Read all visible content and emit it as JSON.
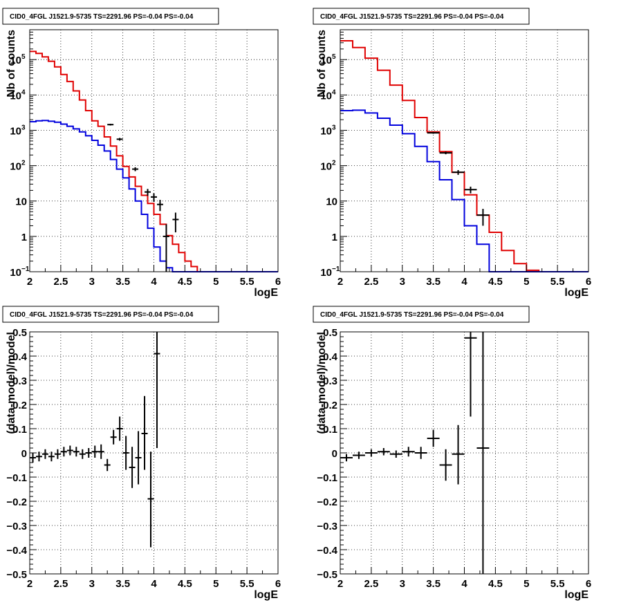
{
  "chart_data": [
    {
      "type": "line",
      "title": "CID0_4FGL J1521.9-5735 TS=2291.96 PS=-0.04 PS=-0.04",
      "xlabel": "logE",
      "ylabel": "Nb of counts",
      "xlim": [
        2,
        6
      ],
      "ylim": [
        0.1,
        700000
      ],
      "ylog": true,
      "grid": true,
      "x_ticks": [
        "2",
        "2.5",
        "3",
        "3.5",
        "4",
        "4.5",
        "5",
        "5.5",
        "6"
      ],
      "y_ticks": [
        {
          "value": 0.1,
          "label": "10",
          "sup": "−1"
        },
        {
          "value": 1,
          "label": "1",
          "sup": ""
        },
        {
          "value": 10,
          "label": "10",
          "sup": ""
        },
        {
          "value": 100,
          "label": "10",
          "sup": "2"
        },
        {
          "value": 1000,
          "label": "10",
          "sup": "3"
        },
        {
          "value": 10000,
          "label": "10",
          "sup": "4"
        },
        {
          "value": 100000,
          "label": "10",
          "sup": "5"
        }
      ],
      "bin_edges": [
        2.0,
        2.1,
        2.2,
        2.3,
        2.4,
        2.5,
        2.6,
        2.7,
        2.8,
        2.9,
        3.0,
        3.1,
        3.2,
        3.3,
        3.4,
        3.5,
        3.6,
        3.7,
        3.8,
        3.9,
        4.0,
        4.1,
        4.2,
        4.3,
        4.4,
        4.5,
        4.6,
        4.7,
        4.8,
        4.9,
        5.0,
        6.0
      ],
      "series": [
        {
          "color": "#e00000",
          "values": [
            170000,
            150000,
            120000,
            90000,
            62000,
            38000,
            24000,
            13000,
            7200,
            3600,
            1850,
            1300,
            650,
            360,
            190,
            95,
            48,
            26,
            14.5,
            8.5,
            4.2,
            2.2,
            1.05,
            0.6,
            0.35,
            0.2,
            0.14,
            0.1,
            0.1,
            0.1,
            0.1
          ]
        },
        {
          "color": "#0000dd",
          "values": [
            1750,
            1850,
            1900,
            1800,
            1700,
            1500,
            1300,
            1100,
            900,
            700,
            520,
            380,
            260,
            150,
            80,
            45,
            22,
            10,
            4.2,
            1.7,
            0.5,
            0.2,
            0.13,
            0.1,
            0.1,
            0.1,
            0.1,
            0.1,
            0.1,
            0.1,
            0.1
          ]
        }
      ],
      "points": [
        {
          "x": 3.3,
          "y": 1450,
          "xerr": 0.05,
          "ylo": 1370,
          "yhi": 1530
        },
        {
          "x": 3.45,
          "y": 560,
          "xerr": 0.05,
          "ylo": 510,
          "yhi": 610
        },
        {
          "x": 3.7,
          "y": 80,
          "xerr": 0.05,
          "ylo": 70,
          "yhi": 90
        },
        {
          "x": 3.9,
          "y": 18,
          "xerr": 0.05,
          "ylo": 14,
          "yhi": 22
        },
        {
          "x": 4.0,
          "y": 13,
          "xerr": 0.05,
          "ylo": 9.5,
          "yhi": 16.5
        },
        {
          "x": 4.1,
          "y": 8,
          "xerr": 0.05,
          "ylo": 5.2,
          "yhi": 10.8
        },
        {
          "x": 4.2,
          "y": 1,
          "xerr": 0.05,
          "ylo": 0.08,
          "yhi": 2.2
        },
        {
          "x": 4.35,
          "y": 3,
          "xerr": 0.05,
          "ylo": 1.3,
          "yhi": 4.7
        }
      ]
    },
    {
      "type": "line",
      "title": "CID0_4FGL J1521.9-5735 TS=2291.96 PS=-0.04 PS=-0.04",
      "xlabel": "logE",
      "ylabel": "Nb of counts",
      "xlim": [
        2,
        6
      ],
      "ylim": [
        0.1,
        700000
      ],
      "ylog": true,
      "grid": true,
      "x_ticks": [
        "2",
        "2.5",
        "3",
        "3.5",
        "4",
        "4.5",
        "5",
        "5.5",
        "6"
      ],
      "y_ticks": [
        {
          "value": 0.1,
          "label": "10",
          "sup": "−1"
        },
        {
          "value": 1,
          "label": "1",
          "sup": ""
        },
        {
          "value": 10,
          "label": "10",
          "sup": ""
        },
        {
          "value": 100,
          "label": "10",
          "sup": "2"
        },
        {
          "value": 1000,
          "label": "10",
          "sup": "3"
        },
        {
          "value": 10000,
          "label": "10",
          "sup": "4"
        },
        {
          "value": 100000,
          "label": "10",
          "sup": "5"
        }
      ],
      "bin_edges": [
        2.0,
        2.2,
        2.4,
        2.6,
        2.8,
        3.0,
        3.2,
        3.4,
        3.6,
        3.8,
        4.0,
        4.2,
        4.4,
        4.6,
        4.8,
        5.0,
        5.2,
        6.0
      ],
      "series": [
        {
          "color": "#e00000",
          "values": [
            340000,
            220000,
            110000,
            50000,
            19000,
            7000,
            2300,
            900,
            250,
            65,
            15,
            4,
            1.3,
            0.4,
            0.17,
            0.11,
            0.1
          ]
        },
        {
          "color": "#0000dd",
          "values": [
            3600,
            3700,
            3100,
            2200,
            1400,
            800,
            350,
            130,
            40,
            11,
            2,
            0.6,
            0.1,
            0.1,
            0.1,
            0.1,
            0.1
          ]
        }
      ],
      "points": [
        {
          "x": 3.5,
          "y": 850,
          "xerr": 0.1,
          "ylo": 800,
          "yhi": 900
        },
        {
          "x": 3.7,
          "y": 230,
          "xerr": 0.1,
          "ylo": 210,
          "yhi": 250
        },
        {
          "x": 3.9,
          "y": 65,
          "xerr": 0.1,
          "ylo": 55,
          "yhi": 75
        },
        {
          "x": 4.1,
          "y": 21,
          "xerr": 0.1,
          "ylo": 16.5,
          "yhi": 25.5
        },
        {
          "x": 4.3,
          "y": 4,
          "xerr": 0.1,
          "ylo": 2,
          "yhi": 6
        }
      ]
    },
    {
      "type": "scatter",
      "title": "CID0_4FGL J1521.9-5735 TS=2291.96 PS=-0.04 PS=-0.04",
      "xlabel": "logE",
      "ylabel": "(data-model)/model",
      "xlim": [
        2,
        6
      ],
      "ylim": [
        -0.5,
        0.5
      ],
      "ylog": false,
      "grid": true,
      "x_ticks": [
        "2",
        "2.5",
        "3",
        "3.5",
        "4",
        "4.5",
        "5",
        "5.5",
        "6"
      ],
      "y_ticks": [
        {
          "value": -0.5,
          "label": "−0.5",
          "sup": ""
        },
        {
          "value": -0.4,
          "label": "−0.4",
          "sup": ""
        },
        {
          "value": -0.3,
          "label": "−0.3",
          "sup": ""
        },
        {
          "value": -0.2,
          "label": "−0.2",
          "sup": ""
        },
        {
          "value": -0.1,
          "label": "−0.1",
          "sup": ""
        },
        {
          "value": 0,
          "label": "0",
          "sup": ""
        },
        {
          "value": 0.1,
          "label": "0.1",
          "sup": ""
        },
        {
          "value": 0.2,
          "label": "0.2",
          "sup": ""
        },
        {
          "value": 0.3,
          "label": "0.3",
          "sup": ""
        },
        {
          "value": 0.4,
          "label": "0.4",
          "sup": ""
        },
        {
          "value": 0.5,
          "label": "0.5",
          "sup": ""
        }
      ],
      "points": [
        {
          "x": 2.05,
          "y": -0.02,
          "xerr": 0.05,
          "ylo": -0.04,
          "yhi": 0.0
        },
        {
          "x": 2.15,
          "y": -0.015,
          "xerr": 0.05,
          "ylo": -0.035,
          "yhi": 0.005
        },
        {
          "x": 2.25,
          "y": -0.005,
          "xerr": 0.05,
          "ylo": -0.025,
          "yhi": 0.015
        },
        {
          "x": 2.35,
          "y": -0.015,
          "xerr": 0.05,
          "ylo": -0.035,
          "yhi": 0.005
        },
        {
          "x": 2.45,
          "y": -0.005,
          "xerr": 0.05,
          "ylo": -0.025,
          "yhi": 0.015
        },
        {
          "x": 2.55,
          "y": 0.005,
          "xerr": 0.05,
          "ylo": -0.015,
          "yhi": 0.025
        },
        {
          "x": 2.65,
          "y": 0.01,
          "xerr": 0.05,
          "ylo": -0.01,
          "yhi": 0.03
        },
        {
          "x": 2.75,
          "y": 0.005,
          "xerr": 0.05,
          "ylo": -0.015,
          "yhi": 0.025
        },
        {
          "x": 2.85,
          "y": -0.005,
          "xerr": 0.05,
          "ylo": -0.025,
          "yhi": 0.015
        },
        {
          "x": 2.95,
          "y": 0.0,
          "xerr": 0.05,
          "ylo": -0.02,
          "yhi": 0.02
        },
        {
          "x": 3.05,
          "y": 0.005,
          "xerr": 0.05,
          "ylo": -0.02,
          "yhi": 0.03
        },
        {
          "x": 3.15,
          "y": 0.005,
          "xerr": 0.05,
          "ylo": -0.025,
          "yhi": 0.035
        },
        {
          "x": 3.25,
          "y": -0.05,
          "xerr": 0.05,
          "ylo": -0.075,
          "yhi": -0.025
        },
        {
          "x": 3.35,
          "y": 0.065,
          "xerr": 0.05,
          "ylo": 0.035,
          "yhi": 0.095
        },
        {
          "x": 3.45,
          "y": 0.1,
          "xerr": 0.05,
          "ylo": 0.05,
          "yhi": 0.15
        },
        {
          "x": 3.55,
          "y": 0.0,
          "xerr": 0.05,
          "ylo": -0.07,
          "yhi": 0.07
        },
        {
          "x": 3.65,
          "y": -0.06,
          "xerr": 0.05,
          "ylo": -0.145,
          "yhi": 0.025
        },
        {
          "x": 3.75,
          "y": -0.02,
          "xerr": 0.05,
          "ylo": -0.13,
          "yhi": 0.09
        },
        {
          "x": 3.85,
          "y": 0.08,
          "xerr": 0.05,
          "ylo": -0.07,
          "yhi": 0.235
        },
        {
          "x": 3.95,
          "y": -0.19,
          "xerr": 0.05,
          "ylo": -0.39,
          "yhi": 0.005
        },
        {
          "x": 4.05,
          "y": 0.41,
          "xerr": 0.05,
          "ylo": 0.02,
          "yhi": 0.5
        }
      ]
    },
    {
      "type": "scatter",
      "title": "CID0_4FGL J1521.9-5735 TS=2291.96 PS=-0.04 PS=-0.04",
      "xlabel": "logE",
      "ylabel": "(data-model)/model",
      "xlim": [
        2,
        6
      ],
      "ylim": [
        -0.5,
        0.5
      ],
      "ylog": false,
      "grid": true,
      "x_ticks": [
        "2",
        "2.5",
        "3",
        "3.5",
        "4",
        "4.5",
        "5",
        "5.5",
        "6"
      ],
      "y_ticks": [
        {
          "value": -0.5,
          "label": "−0.5",
          "sup": ""
        },
        {
          "value": -0.4,
          "label": "−0.4",
          "sup": ""
        },
        {
          "value": -0.3,
          "label": "−0.3",
          "sup": ""
        },
        {
          "value": -0.2,
          "label": "−0.2",
          "sup": ""
        },
        {
          "value": -0.1,
          "label": "−0.1",
          "sup": ""
        },
        {
          "value": 0,
          "label": "0",
          "sup": ""
        },
        {
          "value": 0.1,
          "label": "0.1",
          "sup": ""
        },
        {
          "value": 0.2,
          "label": "0.2",
          "sup": ""
        },
        {
          "value": 0.3,
          "label": "0.3",
          "sup": ""
        },
        {
          "value": 0.4,
          "label": "0.4",
          "sup": ""
        },
        {
          "value": 0.5,
          "label": "0.5",
          "sup": ""
        }
      ],
      "points": [
        {
          "x": 2.1,
          "y": -0.02,
          "xerr": 0.1,
          "ylo": -0.035,
          "yhi": -0.005
        },
        {
          "x": 2.3,
          "y": -0.01,
          "xerr": 0.1,
          "ylo": -0.025,
          "yhi": 0.005
        },
        {
          "x": 2.5,
          "y": 0.0,
          "xerr": 0.1,
          "ylo": -0.015,
          "yhi": 0.015
        },
        {
          "x": 2.7,
          "y": 0.005,
          "xerr": 0.1,
          "ylo": -0.01,
          "yhi": 0.02
        },
        {
          "x": 2.9,
          "y": -0.005,
          "xerr": 0.1,
          "ylo": -0.02,
          "yhi": 0.01
        },
        {
          "x": 3.1,
          "y": 0.005,
          "xerr": 0.1,
          "ylo": -0.015,
          "yhi": 0.025
        },
        {
          "x": 3.3,
          "y": 0.0,
          "xerr": 0.1,
          "ylo": -0.025,
          "yhi": 0.025
        },
        {
          "x": 3.5,
          "y": 0.06,
          "xerr": 0.1,
          "ylo": 0.025,
          "yhi": 0.095
        },
        {
          "x": 3.7,
          "y": -0.05,
          "xerr": 0.1,
          "ylo": -0.115,
          "yhi": 0.015
        },
        {
          "x": 3.9,
          "y": -0.005,
          "xerr": 0.1,
          "ylo": -0.13,
          "yhi": 0.115
        },
        {
          "x": 4.1,
          "y": 0.475,
          "xerr": 0.1,
          "ylo": 0.15,
          "yhi": 0.5
        },
        {
          "x": 4.3,
          "y": 0.02,
          "xerr": 0.1,
          "ylo": -0.5,
          "yhi": 0.5
        }
      ]
    }
  ]
}
